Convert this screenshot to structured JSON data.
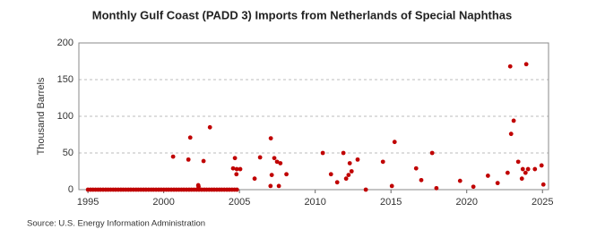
{
  "chart_data": {
    "type": "scatter",
    "title": "Monthly Gulf Coast (PADD 3) Imports from Netherlands of Special Naphthas",
    "y_label": "Thousand Barrels",
    "source": "Source: U.S. Energy Information Administration",
    "xlim": [
      1994.4,
      2025.4
    ],
    "xticks": [
      1995,
      2000,
      2005,
      2010,
      2015,
      2020,
      2025
    ],
    "ylim": [
      0,
      200
    ],
    "yticks": [
      0,
      50,
      100,
      150,
      200
    ],
    "grid": true,
    "series": [
      {
        "color": "#c00000",
        "x": [
          1995,
          1995.17,
          1995.33,
          1995.5,
          1995.67,
          1995.83,
          1996,
          1996.17,
          1996.33,
          1996.5,
          1996.67,
          1996.83,
          1997,
          1997.17,
          1997.33,
          1997.5,
          1997.67,
          1997.83,
          1998,
          1998.17,
          1998.33,
          1998.5,
          1998.67,
          1998.83,
          1999,
          1999.17,
          1999.33,
          1999.5,
          1999.67,
          1999.83,
          2000,
          2000.17,
          2000.33,
          2000.5,
          2000.67,
          2000.83,
          2001,
          2001.17,
          2001.33,
          2001.5,
          2001.67,
          2001.83,
          2002,
          2002.17,
          2002.33,
          2002.5,
          2002.67,
          2002.83,
          2003,
          2003.17,
          2003.33,
          2003.5,
          2003.67,
          2003.83,
          2004,
          2004.17,
          2004.33,
          2004.5,
          2004.67,
          2004.83,
          2000.62,
          2001.63,
          2001.75,
          2002.28,
          2002.3,
          2002.63,
          2003.05,
          2004.58,
          2004.7,
          2004.82,
          2004.8,
          2005.05,
          2006.0,
          2006.36,
          2007.07,
          2007.13,
          2007.05,
          2007.3,
          2007.48,
          2007.7,
          2007.6,
          2008.1,
          2010.5,
          2011.04,
          2011.45,
          2011.86,
          2012.04,
          2012.2,
          2012.28,
          2012.4,
          2012.8,
          2013.34,
          2014.47,
          2015.06,
          2015.24,
          2016.66,
          2017.0,
          2017.72,
          2018.0,
          2019.56,
          2020.44,
          2021.4,
          2022.04,
          2022.7,
          2022.87,
          2022.93,
          2023.1,
          2023.4,
          2023.64,
          2023.7,
          2023.88,
          2023.93,
          2024.05,
          2024.5,
          2024.94,
          2025.06
        ],
        "values": [
          0,
          0,
          0,
          0,
          0,
          0,
          0,
          0,
          0,
          0,
          0,
          0,
          0,
          0,
          0,
          0,
          0,
          0,
          0,
          0,
          0,
          0,
          0,
          0,
          0,
          0,
          0,
          0,
          0,
          0,
          0,
          0,
          0,
          0,
          0,
          0,
          0,
          0,
          0,
          0,
          0,
          0,
          0,
          0,
          0,
          0,
          0,
          0,
          0,
          0,
          0,
          0,
          0,
          0,
          0,
          0,
          0,
          0,
          0,
          0,
          45,
          41,
          71,
          6,
          4,
          39,
          85,
          29,
          43,
          28,
          21,
          28,
          15,
          44,
          70,
          20,
          5,
          43,
          38,
          36,
          5,
          21,
          50,
          21,
          10,
          50,
          15,
          20,
          36,
          25,
          41,
          0,
          38,
          5,
          65,
          29,
          13,
          50,
          2,
          12,
          4,
          19,
          9,
          23,
          168,
          76,
          94,
          38,
          15,
          28,
          23,
          171,
          28,
          28,
          33,
          7
        ]
      }
    ]
  }
}
